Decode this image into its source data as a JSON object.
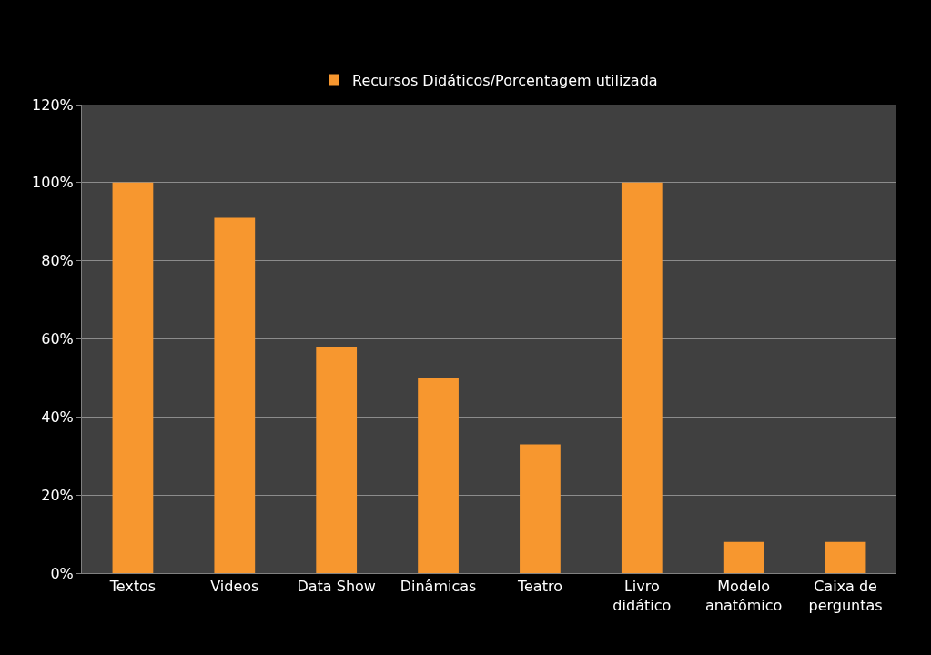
{
  "chart_data": {
    "type": "bar",
    "categories": [
      "Textos",
      "Videos",
      "Data Show",
      "Dinâmicas",
      "Teatro",
      "Livro\ndidático",
      "Modelo\nanatômico",
      "Caixa de\nperguntas"
    ],
    "series": [
      {
        "name": "Recursos Didáticos/Porcentagem utilizada",
        "color": "#f7972f",
        "values": [
          100,
          91,
          58,
          50,
          33,
          100,
          8,
          8
        ]
      }
    ],
    "ylim": [
      0,
      120
    ],
    "yticks": [
      {
        "value": 0,
        "label": "0%"
      },
      {
        "value": 20,
        "label": "20%"
      },
      {
        "value": 40,
        "label": "40%"
      },
      {
        "value": 60,
        "label": "60%"
      },
      {
        "value": 80,
        "label": "80%"
      },
      {
        "value": 100,
        "label": "100%"
      },
      {
        "value": 120,
        "label": "120%"
      }
    ],
    "grid": "y",
    "legend": "top"
  }
}
